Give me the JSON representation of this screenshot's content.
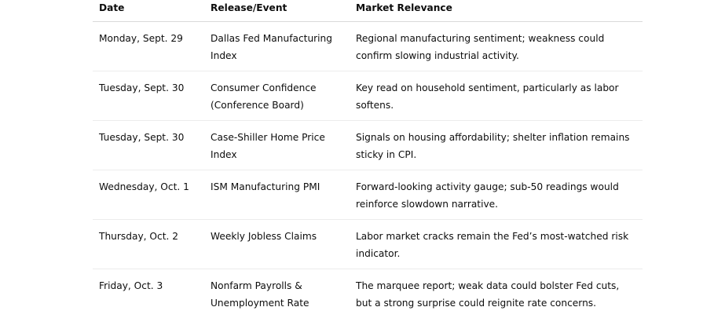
{
  "headers": [
    "Date",
    "Release/Event",
    "Market Relevance"
  ],
  "rows": [
    {
      "date": "Monday, Sept. 29",
      "event": "Dallas Fed Manufacturing Index",
      "relevance": "Regional manufacturing sentiment; weakness could confirm slowing industrial activity."
    },
    {
      "date": "Tuesday, Sept. 30",
      "event": "Consumer Confidence (Conference Board)",
      "relevance": "Key read on household sentiment, particularly as labor softens."
    },
    {
      "date": "Tuesday, Sept. 30",
      "event": "Case-Shiller Home Price Index",
      "relevance": "Signals on housing affordability; shelter inflation remains sticky in CPI."
    },
    {
      "date": "Wednesday, Oct. 1",
      "event": "ISM Manufacturing PMI",
      "relevance": "Forward-looking activity gauge; sub-50 readings would reinforce slowdown narrative."
    },
    {
      "date": "Thursday, Oct. 2",
      "event": "Weekly Jobless Claims",
      "relevance": "Labor market cracks remain the Fed’s most-watched risk indicator."
    },
    {
      "date": "Friday, Oct. 3",
      "event": "Nonfarm Payrolls & Unemployment Rate",
      "relevance": "The marquee report; weak data could bolster Fed cuts, but a strong surprise could reignite rate concerns."
    }
  ]
}
